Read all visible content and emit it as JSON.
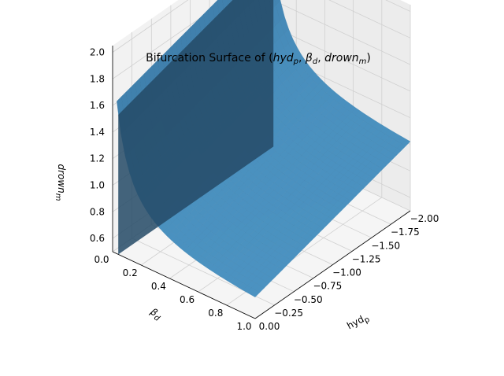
{
  "chart_data": {
    "type": "surface3d",
    "title": "Bifurcation Surface of ($hyd_p, \\beta_d, drown_m$)",
    "title_parts": {
      "prefix": "Bifurcation Surface of ",
      "open": "(",
      "a": "hyd",
      "a_sub": "p",
      "sep1": ", ",
      "b": "β",
      "b_sub": "d",
      "sep2": ", ",
      "c": "drown",
      "c_sub": "m",
      "close": ")"
    },
    "xlabel": "hyd_p",
    "xlabel_parts": {
      "main": "hyd",
      "sub": "p"
    },
    "ylabel": "β_d",
    "ylabel_parts": {
      "main": "β",
      "sub": "d"
    },
    "zlabel": "drown_m",
    "zlabel_parts": {
      "main": "drown",
      "sub": "m"
    },
    "x_ticks": [
      "−2.00",
      "−1.75",
      "−1.50",
      "−1.25",
      "−1.00",
      "−0.75",
      "−0.50",
      "−0.25",
      "0.00"
    ],
    "x_tick_values": [
      -2.0,
      -1.75,
      -1.5,
      -1.25,
      -1.0,
      -0.75,
      -0.5,
      -0.25,
      0.0
    ],
    "y_ticks": [
      "0.0",
      "0.2",
      "0.4",
      "0.6",
      "0.8",
      "1.0"
    ],
    "y_tick_values": [
      0.0,
      0.2,
      0.4,
      0.6,
      0.8,
      1.0
    ],
    "z_ticks": [
      "0.6",
      "0.8",
      "1.0",
      "1.2",
      "1.4",
      "1.6",
      "1.8",
      "2.0"
    ],
    "z_tick_values": [
      0.6,
      0.8,
      1.0,
      1.2,
      1.4,
      1.6,
      1.8,
      2.0
    ],
    "xlim": [
      -2.0,
      0.0
    ],
    "ylim": [
      0.0,
      1.0
    ],
    "zlim": [
      0.5,
      2.05
    ],
    "grid": true,
    "colors": {
      "surface": "#3f8dc4",
      "pane": "#f2f2f2",
      "grid": "#cfcfcf"
    }
  }
}
